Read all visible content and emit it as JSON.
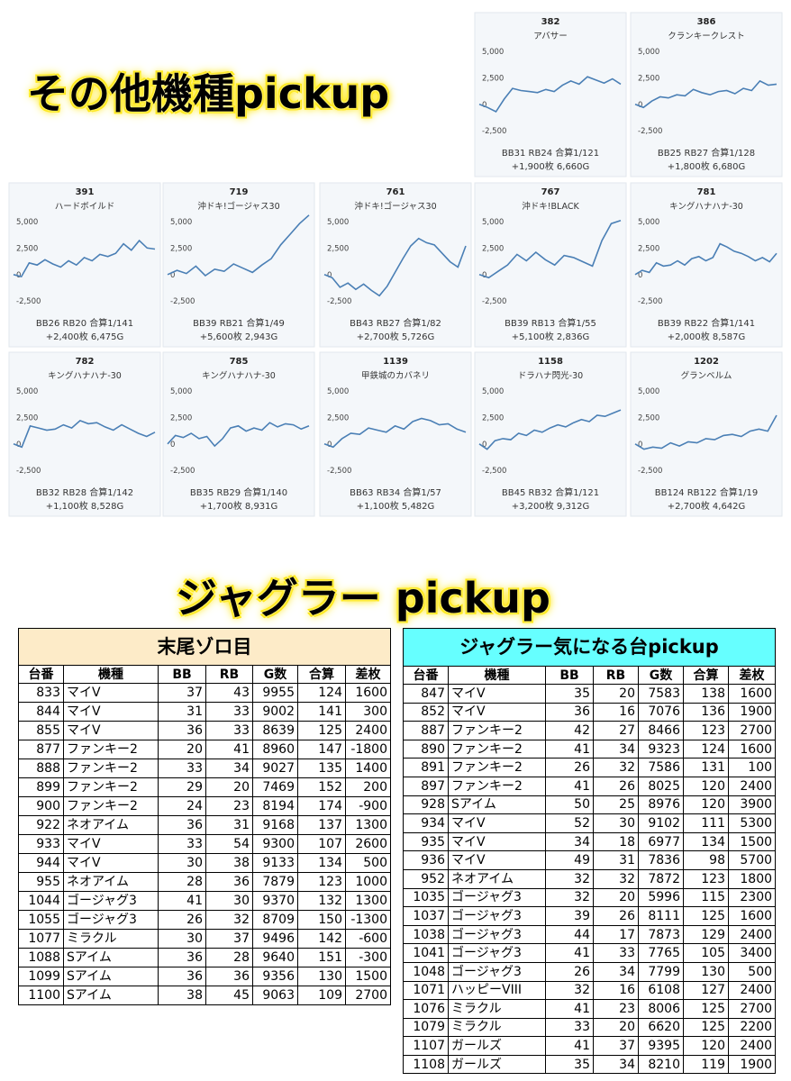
{
  "headers": {
    "top": "その他機種pickup",
    "juggler": "ジャグラー pickup"
  },
  "chart_data": [
    {
      "type": "line",
      "title": "382",
      "subtitle": "アバサー",
      "color": "#4a7fb5",
      "ylim": [
        -3500,
        5500
      ],
      "yticks": [
        {
          "value": 5000,
          "label": "5,000"
        },
        {
          "value": 2500,
          "label": "2,500"
        },
        0,
        {
          "value": -2500,
          "label": "-2,500"
        }
      ],
      "values": [
        0,
        -300,
        -700,
        500,
        1500,
        1300,
        1200,
        1100,
        1400,
        1200,
        1800,
        2200,
        1900,
        2600,
        2300,
        2000,
        2400,
        1900
      ],
      "annotations": [
        "BB31 RB24 合算1/121",
        "+1,900枚 6,660G"
      ]
    },
    {
      "type": "line",
      "title": "386",
      "subtitle": "クランキークレスト",
      "color": "#4a7fb5",
      "ylim": [
        -3500,
        5500
      ],
      "yticks": [
        {
          "value": 5000,
          "label": "5,000"
        },
        {
          "value": 2500,
          "label": "2,500"
        },
        0,
        {
          "value": -2500,
          "label": "-2,500"
        }
      ],
      "values": [
        0,
        -300,
        300,
        700,
        600,
        900,
        800,
        1400,
        1100,
        900,
        1200,
        1300,
        1000,
        1500,
        1300,
        2200,
        1800,
        1900
      ],
      "annotations": [
        "BB25 RB27 合算1/128",
        "+1,800枚 6,680G"
      ]
    },
    {
      "type": "line",
      "title": "391",
      "subtitle": "ハードボイルド",
      "color": "#4a7fb5",
      "ylim": [
        -3500,
        5500
      ],
      "yticks": [
        {
          "value": 5000,
          "label": "5,000"
        },
        {
          "value": 2500,
          "label": "2,500"
        },
        0,
        {
          "value": -2500,
          "label": "-2,500"
        }
      ],
      "values": [
        0,
        -200,
        1100,
        900,
        1400,
        1000,
        700,
        1300,
        900,
        1600,
        1300,
        1900,
        1700,
        2000,
        2900,
        2300,
        3200,
        2500,
        2400
      ],
      "annotations": [
        "BB26 RB20 合算1/141",
        "+2,400枚 6,475G"
      ]
    },
    {
      "type": "line",
      "title": "719",
      "subtitle": "沖ドキ!ゴージャス30",
      "color": "#4a7fb5",
      "ylim": [
        -3500,
        5500
      ],
      "yticks": [
        {
          "value": 5000,
          "label": "5,000"
        },
        {
          "value": 2500,
          "label": "2,500"
        },
        0,
        {
          "value": -2500,
          "label": "-2,500"
        }
      ],
      "values": [
        0,
        400,
        100,
        800,
        -100,
        500,
        300,
        1000,
        600,
        200,
        900,
        1500,
        2800,
        3800,
        4800,
        5600
      ],
      "annotations": [
        "BB39 RB21 合算1/49",
        "+5,600枚 2,943G"
      ]
    },
    {
      "type": "line",
      "title": "761",
      "subtitle": "沖ドキ!ゴージャス30",
      "color": "#4a7fb5",
      "ylim": [
        -3500,
        5500
      ],
      "yticks": [
        {
          "value": 5000,
          "label": "5,000"
        },
        {
          "value": 2500,
          "label": "2,500"
        },
        0,
        {
          "value": -2500,
          "label": "-2,500"
        }
      ],
      "values": [
        0,
        -300,
        -1200,
        -800,
        -1400,
        -900,
        -1500,
        -2000,
        -1100,
        200,
        1500,
        2700,
        3400,
        3000,
        2800,
        2000,
        1200,
        700,
        2700
      ],
      "annotations": [
        "BB43 RB27 合算1/82",
        "+2,700枚 5,726G"
      ]
    },
    {
      "type": "line",
      "title": "767",
      "subtitle": "沖ドキ!BLACK",
      "color": "#4a7fb5",
      "ylim": [
        -3500,
        5500
      ],
      "yticks": [
        {
          "value": 5000,
          "label": "5,000"
        },
        {
          "value": 2500,
          "label": "2,500"
        },
        0,
        {
          "value": -2500,
          "label": "-2,500"
        }
      ],
      "values": [
        0,
        -300,
        300,
        900,
        1900,
        1300,
        2100,
        1400,
        900,
        1800,
        1600,
        1200,
        800,
        3200,
        4800,
        5100
      ],
      "annotations": [
        "BB39 RB13 合算1/55",
        "+5,100枚 2,836G"
      ]
    },
    {
      "type": "line",
      "title": "781",
      "subtitle": "キングハナハナ-30",
      "color": "#4a7fb5",
      "ylim": [
        -3500,
        5500
      ],
      "yticks": [
        {
          "value": 5000,
          "label": "5,000"
        },
        {
          "value": 2500,
          "label": "2,500"
        },
        0,
        {
          "value": -2500,
          "label": "-2,500"
        }
      ],
      "values": [
        0,
        400,
        200,
        1100,
        800,
        900,
        1300,
        900,
        1500,
        1700,
        1300,
        1600,
        2900,
        2600,
        2200,
        2000,
        1700,
        1300,
        1600,
        1200,
        2000
      ],
      "annotations": [
        "BB39 RB22 合算1/141",
        "+2,000枚 8,587G"
      ]
    },
    {
      "type": "line",
      "title": "782",
      "subtitle": "キングハナハナ-30",
      "color": "#4a7fb5",
      "ylim": [
        -3500,
        5500
      ],
      "yticks": [
        {
          "value": 5000,
          "label": "5,000"
        },
        {
          "value": 2500,
          "label": "2,500"
        },
        0,
        {
          "value": -2500,
          "label": "-2,500"
        }
      ],
      "values": [
        0,
        -300,
        1700,
        1500,
        1300,
        1400,
        1800,
        1500,
        2200,
        1900,
        2000,
        1600,
        1300,
        1800,
        1400,
        1000,
        700,
        1100
      ],
      "annotations": [
        "BB32 RB28 合算1/142",
        "+1,100枚 8,528G"
      ]
    },
    {
      "type": "line",
      "title": "785",
      "subtitle": "キングハナハナ-30",
      "color": "#4a7fb5",
      "ylim": [
        -3500,
        5500
      ],
      "yticks": [
        {
          "value": 5000,
          "label": "5,000"
        },
        {
          "value": 2500,
          "label": "2,500"
        },
        0,
        {
          "value": -2500,
          "label": "-2,500"
        }
      ],
      "values": [
        0,
        800,
        600,
        1000,
        500,
        700,
        -200,
        500,
        1500,
        1700,
        1200,
        1500,
        1300,
        2000,
        1600,
        1900,
        1800,
        1400,
        1700
      ],
      "annotations": [
        "BB35 RB29 合算1/140",
        "+1,700枚 8,931G"
      ]
    },
    {
      "type": "line",
      "title": "1139",
      "subtitle": "甲鉄城のカバネリ",
      "color": "#4a7fb5",
      "ylim": [
        -3500,
        5500
      ],
      "yticks": [
        {
          "value": 5000,
          "label": "5,000"
        },
        {
          "value": 2500,
          "label": "2,500"
        },
        0,
        {
          "value": -2500,
          "label": "-2,500"
        }
      ],
      "values": [
        0,
        -300,
        500,
        1000,
        900,
        1500,
        1300,
        1100,
        1700,
        1400,
        2100,
        2400,
        2200,
        1800,
        1900,
        1400,
        1100
      ],
      "annotations": [
        "BB63 RB34 合算1/57",
        "+1,100枚 5,482G"
      ]
    },
    {
      "type": "line",
      "title": "1158",
      "subtitle": "ドラハナ閃光-30",
      "color": "#4a7fb5",
      "ylim": [
        -3500,
        5500
      ],
      "yticks": [
        {
          "value": 5000,
          "label": "5,000"
        },
        {
          "value": 2500,
          "label": "2,500"
        },
        0,
        {
          "value": -2500,
          "label": "-2,500"
        }
      ],
      "values": [
        0,
        -500,
        300,
        500,
        400,
        1000,
        800,
        1300,
        1100,
        1500,
        1800,
        1600,
        2000,
        2300,
        2100,
        2700,
        2600,
        2900,
        3200
      ],
      "annotations": [
        "BB45 RB32 合算1/121",
        "+3,200枚 9,312G"
      ]
    },
    {
      "type": "line",
      "title": "1202",
      "subtitle": "グランベルム",
      "color": "#4a7fb5",
      "ylim": [
        -3500,
        5500
      ],
      "yticks": [
        {
          "value": 5000,
          "label": "5,000"
        },
        {
          "value": 2500,
          "label": "2,500"
        },
        0,
        {
          "value": -2500,
          "label": "-2,500"
        }
      ],
      "values": [
        0,
        -500,
        -300,
        -400,
        100,
        -200,
        200,
        100,
        500,
        400,
        800,
        900,
        700,
        1200,
        1400,
        1200,
        2700
      ],
      "annotations": [
        "BB124 RB122 合算1/19",
        "+2,700枚 4,642G"
      ]
    }
  ],
  "tables": [
    {
      "title": "末尾ゾロ目",
      "color": "#fdebc8",
      "columns": [
        "台番",
        "機種",
        "BB",
        "RB",
        "G数",
        "合算",
        "差枚"
      ],
      "rows": [
        [
          833,
          "マイV",
          37,
          43,
          9955,
          124,
          1600
        ],
        [
          844,
          "マイV",
          31,
          33,
          9002,
          141,
          300
        ],
        [
          855,
          "マイV",
          36,
          33,
          8639,
          125,
          2400
        ],
        [
          877,
          "ファンキー2",
          20,
          41,
          8960,
          147,
          -1800
        ],
        [
          888,
          "ファンキー2",
          33,
          34,
          9027,
          135,
          1400
        ],
        [
          899,
          "ファンキー2",
          29,
          20,
          7469,
          152,
          200
        ],
        [
          900,
          "ファンキー2",
          24,
          23,
          8194,
          174,
          -900
        ],
        [
          922,
          "ネオアイム",
          36,
          31,
          9168,
          137,
          1300
        ],
        [
          933,
          "マイV",
          33,
          54,
          9300,
          107,
          2600
        ],
        [
          944,
          "マイV",
          30,
          38,
          9133,
          134,
          500
        ],
        [
          955,
          "ネオアイム",
          28,
          36,
          7879,
          123,
          1000
        ],
        [
          1044,
          "ゴージャグ3",
          41,
          30,
          9370,
          132,
          1300
        ],
        [
          1055,
          "ゴージャグ3",
          26,
          32,
          8709,
          150,
          -1300
        ],
        [
          1077,
          "ミラクル",
          30,
          37,
          9496,
          142,
          -600
        ],
        [
          1088,
          "Sアイム",
          36,
          28,
          9640,
          151,
          -300
        ],
        [
          1099,
          "Sアイム",
          36,
          36,
          9356,
          130,
          1500
        ],
        [
          1100,
          "Sアイム",
          38,
          45,
          9063,
          109,
          2700
        ]
      ]
    },
    {
      "title": "ジャグラー気になる台pickup",
      "color": "#66ffff",
      "columns": [
        "台番",
        "機種",
        "BB",
        "RB",
        "G数",
        "合算",
        "差枚"
      ],
      "rows": [
        [
          847,
          "マイV",
          35,
          20,
          7583,
          138,
          1600
        ],
        [
          852,
          "マイV",
          36,
          16,
          7076,
          136,
          1900
        ],
        [
          887,
          "ファンキー2",
          42,
          27,
          8466,
          123,
          2700
        ],
        [
          890,
          "ファンキー2",
          41,
          34,
          9323,
          124,
          1600
        ],
        [
          891,
          "ファンキー2",
          26,
          32,
          7586,
          131,
          100
        ],
        [
          897,
          "ファンキー2",
          41,
          26,
          8025,
          120,
          2400
        ],
        [
          928,
          "Sアイム",
          50,
          25,
          8976,
          120,
          3900
        ],
        [
          934,
          "マイV",
          52,
          30,
          9102,
          111,
          5300
        ],
        [
          935,
          "マイV",
          34,
          18,
          6977,
          134,
          1500
        ],
        [
          936,
          "マイV",
          49,
          31,
          7836,
          98,
          5700
        ],
        [
          952,
          "ネオアイム",
          32,
          32,
          7872,
          123,
          1800
        ],
        [
          1035,
          "ゴージャグ3",
          32,
          20,
          5996,
          115,
          2300
        ],
        [
          1037,
          "ゴージャグ3",
          39,
          26,
          8111,
          125,
          1600
        ],
        [
          1038,
          "ゴージャグ3",
          44,
          17,
          7873,
          129,
          2400
        ],
        [
          1041,
          "ゴージャグ3",
          41,
          33,
          7765,
          105,
          3400
        ],
        [
          1048,
          "ゴージャグ3",
          26,
          34,
          7799,
          130,
          500
        ],
        [
          1071,
          "ハッピーVIII",
          32,
          16,
          6108,
          127,
          2400
        ],
        [
          1076,
          "ミラクル",
          41,
          23,
          8006,
          125,
          2700
        ],
        [
          1079,
          "ミラクル",
          33,
          20,
          6620,
          125,
          2200
        ],
        [
          1107,
          "ガールズ",
          41,
          37,
          9395,
          120,
          2400
        ],
        [
          1108,
          "ガールズ",
          35,
          34,
          8210,
          119,
          1900
        ]
      ]
    }
  ]
}
